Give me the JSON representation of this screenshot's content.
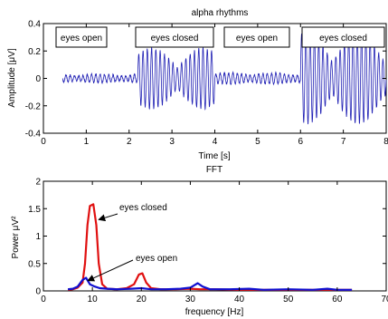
{
  "chart_data": [
    {
      "type": "line",
      "title": "alpha rhythms",
      "xlabel": "Time [s]",
      "ylabel": "Amplitude [μV]",
      "xlim": [
        0,
        8
      ],
      "ylim": [
        -0.4,
        0.4
      ],
      "x_ticks": [
        "0",
        "1",
        "2",
        "3",
        "4",
        "5",
        "6",
        "7",
        "8"
      ],
      "y_ticks": [
        "0.4",
        "0.2",
        "0",
        "-0.2",
        "-0.4"
      ],
      "color": "#1f1fb4",
      "segments": [
        {
          "label": "eyes open",
          "t_start": 0,
          "t_end": 2.2,
          "peak_amplitude": 0.03
        },
        {
          "label": "eyes closed",
          "t_start": 2.2,
          "t_end": 4.0,
          "peak_amplitude": 0.22
        },
        {
          "label": "eyes open",
          "t_start": 4.0,
          "t_end": 6.0,
          "peak_amplitude": 0.04
        },
        {
          "label": "eyes closed",
          "t_start": 6.0,
          "t_end": 8.0,
          "peak_amplitude": 0.33
        }
      ],
      "frequency_hz": 10
    },
    {
      "type": "line",
      "title": "FFT",
      "xlabel": "frequency [Hz]",
      "ylabel": "Power μV²",
      "xlim": [
        0,
        70
      ],
      "ylim": [
        0,
        2
      ],
      "x_ticks": [
        "0",
        "10",
        "20",
        "30",
        "40",
        "50",
        "60",
        "70"
      ],
      "y_ticks": [
        "2",
        "1.5",
        "1",
        "0.5",
        "0"
      ],
      "series": [
        {
          "color": "#e01010",
          "points": [
            [
              5,
              0.02
            ],
            [
              6,
              0.03
            ],
            [
              7,
              0.06
            ],
            [
              8,
              0.15
            ],
            [
              8.5,
              0.5
            ],
            [
              9,
              1.2
            ],
            [
              9.5,
              1.55
            ],
            [
              10.2,
              1.58
            ],
            [
              10.8,
              1.2
            ],
            [
              11.3,
              0.5
            ],
            [
              12,
              0.12
            ],
            [
              13,
              0.04
            ],
            [
              15,
              0.03
            ],
            [
              17,
              0.05
            ],
            [
              18.5,
              0.12
            ],
            [
              19.5,
              0.3
            ],
            [
              20.2,
              0.32
            ],
            [
              21,
              0.15
            ],
            [
              22,
              0.05
            ],
            [
              24,
              0.03
            ],
            [
              27,
              0.03
            ],
            [
              30,
              0.04
            ],
            [
              32,
              0.03
            ],
            [
              35,
              0.03
            ],
            [
              40,
              0.02
            ],
            [
              45,
              0.02
            ],
            [
              50,
              0.02
            ],
            [
              55,
              0.02
            ],
            [
              60,
              0.02
            ],
            [
              63,
              0.02
            ]
          ]
        },
        {
          "color": "#1010d0",
          "points": [
            [
              5,
              0.03
            ],
            [
              6,
              0.04
            ],
            [
              7,
              0.08
            ],
            [
              8,
              0.2
            ],
            [
              8.7,
              0.24
            ],
            [
              9.5,
              0.12
            ],
            [
              10.5,
              0.08
            ],
            [
              11.5,
              0.05
            ],
            [
              13,
              0.04
            ],
            [
              15,
              0.03
            ],
            [
              18,
              0.04
            ],
            [
              20,
              0.05
            ],
            [
              22,
              0.03
            ],
            [
              25,
              0.03
            ],
            [
              28,
              0.04
            ],
            [
              30,
              0.06
            ],
            [
              31.5,
              0.14
            ],
            [
              32.5,
              0.08
            ],
            [
              34,
              0.03
            ],
            [
              38,
              0.03
            ],
            [
              42,
              0.04
            ],
            [
              45,
              0.02
            ],
            [
              50,
              0.03
            ],
            [
              55,
              0.02
            ],
            [
              58,
              0.04
            ],
            [
              60,
              0.02
            ],
            [
              63,
              0.02
            ]
          ]
        }
      ],
      "annotations": [
        {
          "text": "eyes closed",
          "points_to": [
            10.2,
            1.3
          ]
        },
        {
          "text": "eyes open",
          "points_to": [
            8.7,
            0.22
          ]
        }
      ]
    }
  ]
}
